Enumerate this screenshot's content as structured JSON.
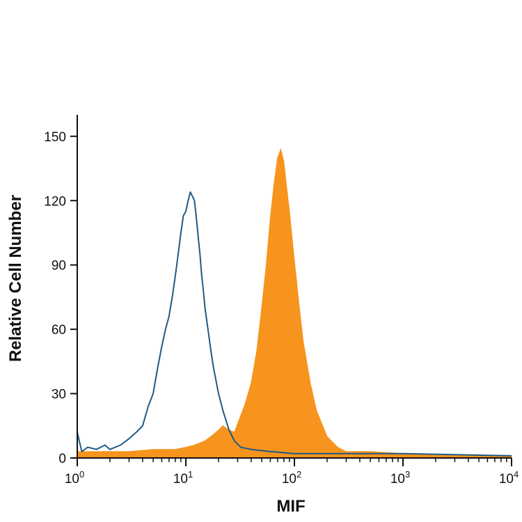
{
  "chart_data": {
    "type": "area",
    "xlabel": "MIF",
    "ylabel": "Relative Cell Number",
    "x_scale": "log",
    "xlim": [
      1,
      10000
    ],
    "ylim": [
      0,
      160
    ],
    "y_ticks": [
      "0",
      "30",
      "60",
      "90",
      "120",
      "150"
    ],
    "x_ticks": [
      {
        "base": "10",
        "exp": "0"
      },
      {
        "base": "10",
        "exp": "1"
      },
      {
        "base": "10",
        "exp": "2"
      },
      {
        "base": "10",
        "exp": "3"
      },
      {
        "base": "10",
        "exp": "4"
      }
    ],
    "grid": false,
    "legend": "none",
    "series": [
      {
        "style": "outline",
        "color": "#1f5a85",
        "x": [
          1.0,
          1.1,
          1.25,
          1.5,
          1.8,
          2.0,
          2.5,
          3.0,
          3.5,
          4.0,
          4.5,
          5.0,
          5.5,
          6.0,
          6.5,
          7.0,
          7.5,
          8.0,
          8.5,
          9.0,
          9.5,
          10.0,
          10.5,
          11.0,
          11.5,
          12.0,
          12.5,
          13.0,
          13.5,
          14.0,
          14.5,
          15.0,
          16.0,
          17.0,
          18.0,
          20.0,
          22.0,
          25.0,
          28.0,
          32.0,
          40.0,
          60.0,
          100.0,
          1000.0,
          10000.0
        ],
        "y": [
          12,
          3,
          5,
          4,
          6,
          4,
          6,
          9,
          12,
          15,
          24,
          30,
          42,
          52,
          60,
          66,
          75,
          85,
          95,
          105,
          113,
          115,
          120,
          124,
          122,
          120,
          112,
          103,
          95,
          85,
          78,
          70,
          60,
          50,
          42,
          30,
          22,
          13,
          8,
          5,
          4,
          3,
          2,
          2,
          1
        ]
      },
      {
        "style": "filled",
        "color": "#f7941d",
        "x": [
          1.0,
          1.5,
          2.0,
          3.0,
          5.0,
          8.0,
          10.0,
          12.0,
          15.0,
          18.0,
          20.0,
          22.0,
          25.0,
          28.0,
          30.0,
          35.0,
          40.0,
          45.0,
          50.0,
          55.0,
          60.0,
          65.0,
          70.0,
          75.0,
          80.0,
          85.0,
          90.0,
          100.0,
          110.0,
          120.0,
          140.0,
          160.0,
          200.0,
          250.0,
          300.0,
          500.0,
          1000.0,
          10000.0
        ],
        "y": [
          3,
          3,
          3,
          3,
          4,
          4,
          5,
          6,
          8,
          11,
          13,
          15,
          13,
          12,
          16,
          25,
          35,
          50,
          70,
          90,
          112,
          128,
          140,
          144,
          138,
          126,
          115,
          92,
          72,
          55,
          35,
          22,
          10,
          5,
          3,
          3,
          2,
          1
        ]
      }
    ]
  }
}
